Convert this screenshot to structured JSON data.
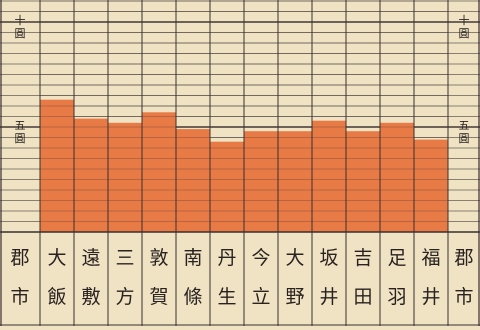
{
  "chart_data": {
    "type": "bar",
    "title": "",
    "xlabel": "",
    "ylabel": "",
    "axis_header": "郡市",
    "y_tick_labels": [
      {
        "value": 10,
        "label": "十圓"
      },
      {
        "value": 5,
        "label": "五圓"
      }
    ],
    "ylim": [
      0,
      10
    ],
    "grid": true,
    "categories": [
      "大飯",
      "遠敷",
      "三方",
      "敦賀",
      "南條",
      "丹生",
      "今立",
      "大野",
      "坂井",
      "吉田",
      "足羽",
      "福井"
    ],
    "values": [
      6.3,
      5.4,
      5.2,
      5.7,
      4.9,
      4.3,
      4.8,
      4.8,
      5.3,
      4.8,
      5.2,
      4.4
    ],
    "bar_color": "#e87a45",
    "grid_color": "#3a3030",
    "background_color": "#efe3c4"
  }
}
